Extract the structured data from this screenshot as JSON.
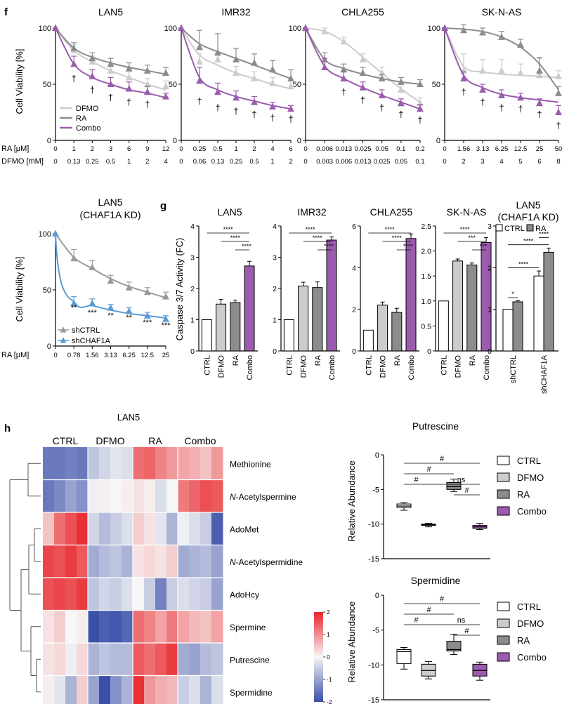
{
  "panels": {
    "f": "f",
    "g": "g",
    "h": "h"
  },
  "colors": {
    "dfmo": "#cccccc",
    "ra": "#8c8c8c",
    "combo": "#9b5bae",
    "shctrl": "#9a9a9a",
    "shchaf1a": "#5b9bd5",
    "heat_low": "#3a4fa8",
    "heat_mid": "#f7f7f7",
    "heat_high": "#e8262b"
  },
  "panel_f": {
    "ylabel": "Cell Viability [%]",
    "ra_row_label": "RA [μM]",
    "dfmo_row_label": "DFMO [mM]",
    "legend": [
      "DFMO",
      "RA",
      "Combo"
    ],
    "dagger": "†",
    "charts": [
      {
        "title": "LAN5",
        "ra_ticks": [
          "0",
          "1",
          "2",
          "3",
          "6",
          "9",
          "12"
        ],
        "dfmo_ticks": [
          "0",
          "0.13",
          "0.25",
          "0.5",
          "1",
          "2",
          "4"
        ],
        "ylim": [
          0,
          100
        ],
        "yticks": [
          "0",
          "50",
          "100"
        ],
        "series": [
          {
            "key": "dfmo",
            "values": [
              100,
              80,
              70,
              62,
              56,
              50,
              48
            ],
            "err": [
              0,
              5,
              5,
              5,
              5,
              5,
              5
            ],
            "fit": [
              100,
              80,
              70,
              62,
              56,
              50,
              45
            ]
          },
          {
            "key": "ra",
            "values": [
              100,
              82,
              73,
              68,
              64,
              62,
              60
            ],
            "err": [
              0,
              5,
              5,
              5,
              5,
              5,
              5
            ],
            "fit": [
              100,
              82,
              74,
              69,
              65,
              62,
              59
            ]
          },
          {
            "key": "combo",
            "values": [
              100,
              68,
              57,
              50,
              46,
              43,
              39
            ],
            "err": [
              0,
              7,
              6,
              6,
              6,
              5,
              3
            ],
            "fit": [
              100,
              68,
              56,
              50,
              45,
              42,
              38
            ]
          }
        ],
        "daggers": [
          1,
          2,
          3,
          4,
          5
        ]
      },
      {
        "title": "IMR32",
        "ra_ticks": [
          "0",
          "0.25",
          "0.5",
          "1",
          "2",
          "4",
          "6"
        ],
        "dfmo_ticks": [
          "0",
          "0.06",
          "0.13",
          "0.25",
          "0.5",
          "1",
          "2"
        ],
        "ylim": [
          0,
          100
        ],
        "yticks": [
          "0",
          "50",
          "100"
        ],
        "series": [
          {
            "key": "dfmo",
            "values": [
              100,
              70,
              72,
              60,
              55,
              51,
              48
            ],
            "err": [
              0,
              7,
              6,
              6,
              6,
              5,
              5
            ],
            "fit": [
              100,
              76,
              67,
              60,
              55,
              50,
              46
            ]
          },
          {
            "key": "ra",
            "values": [
              100,
              83,
              78,
              72,
              69,
              63,
              55
            ],
            "err": [
              0,
              15,
              17,
              10,
              8,
              8,
              8
            ],
            "fit": [
              100,
              86,
              79,
              73,
              67,
              61,
              55
            ]
          },
          {
            "key": "combo",
            "values": [
              100,
              53,
              43,
              38,
              34,
              30,
              28
            ],
            "err": [
              0,
              12,
              8,
              6,
              5,
              4,
              3
            ],
            "fit": [
              100,
              56,
              45,
              39,
              35,
              31,
              28
            ]
          }
        ],
        "daggers": [
          1,
          2,
          3,
          4,
          5,
          6
        ]
      },
      {
        "title": "CHLA255",
        "ra_ticks": [
          "0",
          "0.006",
          "0.013",
          "0.025",
          "0.05",
          "0.1",
          "0.2"
        ],
        "dfmo_ticks": [
          "0",
          "0.003",
          "0.006",
          "0.013",
          "0.025",
          "0.05",
          "0.1"
        ],
        "ylim": [
          0,
          100
        ],
        "yticks": [
          "0",
          "50",
          "100"
        ],
        "series": [
          {
            "key": "dfmo",
            "values": [
              100,
              97,
              88,
              72,
              60,
              45,
              33
            ],
            "err": [
              0,
              3,
              4,
              5,
              5,
              6,
              5
            ],
            "fit": [
              100,
              97,
              88,
              74,
              60,
              46,
              34
            ]
          },
          {
            "key": "ra",
            "values": [
              100,
              72,
              63,
              60,
              55,
              52,
              50
            ],
            "err": [
              0,
              6,
              5,
              5,
              4,
              4,
              4
            ],
            "fit": [
              100,
              72,
              64,
              59,
              55,
              52,
              50
            ]
          },
          {
            "key": "combo",
            "values": [
              100,
              65,
              55,
              47,
              40,
              33,
              28
            ],
            "err": [
              0,
              8,
              6,
              5,
              5,
              4,
              4
            ],
            "fit": [
              100,
              66,
              55,
              47,
              40,
              34,
              28
            ]
          }
        ],
        "daggers": [
          2,
          3,
          4,
          5,
          6
        ]
      },
      {
        "title": "SK-N-AS",
        "ra_ticks": [
          "0",
          "1.56",
          "3.13",
          "6.25",
          "12.5",
          "25",
          "50"
        ],
        "dfmo_ticks": [
          "0",
          "2",
          "3",
          "4",
          "5",
          "6",
          "8"
        ],
        "ylim": [
          0,
          100
        ],
        "yticks": [
          "0",
          "50",
          "100"
        ],
        "series": [
          {
            "key": "dfmo",
            "values": [
              100,
              62,
              62,
              62,
              60,
              58,
              57
            ],
            "err": [
              0,
              15,
              10,
              10,
              8,
              15,
              5
            ],
            "fit": [
              100,
              66,
              61,
              59,
              58,
              57,
              56
            ]
          },
          {
            "key": "ra",
            "values": [
              100,
              98,
              96,
              92,
              85,
              62,
              42
            ],
            "err": [
              0,
              5,
              4,
              5,
              5,
              12,
              6
            ],
            "fit": [
              100,
              99,
              97,
              92,
              83,
              68,
              45
            ]
          },
          {
            "key": "combo",
            "values": [
              100,
              55,
              45,
              40,
              38,
              33,
              25
            ],
            "err": [
              0,
              6,
              5,
              5,
              4,
              4,
              6
            ],
            "fit": [
              100,
              58,
              47,
              41,
              38,
              36,
              34
            ]
          }
        ],
        "daggers": [
          1,
          2,
          3,
          4,
          5,
          6
        ]
      }
    ]
  },
  "panel_f2": {
    "title_line1": "LAN5",
    "title_line2": "(CHAF1A KD)",
    "ylabel": "Cell Viability [%]",
    "xlabel": "RA [μM]",
    "ticks": [
      "0",
      "0.78",
      "1.56",
      "3.13",
      "6.25",
      "12.5",
      "25"
    ],
    "ylim": [
      0,
      100
    ],
    "yticks": [
      "0",
      "50",
      "100"
    ],
    "legend": [
      "shCTRL",
      "shCHAF1A"
    ],
    "series": [
      {
        "key": "shctrl",
        "values": [
          100,
          78,
          70,
          58,
          52,
          48,
          44
        ],
        "err": [
          0,
          8,
          6,
          5,
          5,
          4,
          4
        ],
        "fit": [
          100,
          79,
          69,
          60,
          53,
          48,
          43
        ]
      },
      {
        "key": "shchaf1a",
        "values": [
          100,
          38,
          38,
          34,
          31,
          27,
          24
        ],
        "err": [
          0,
          6,
          4,
          3,
          3,
          3,
          3
        ],
        "fit": [
          100,
          40,
          36,
          32,
          29,
          27,
          25
        ]
      }
    ],
    "stars": [
      "**",
      "***",
      "**",
      "**",
      "***",
      "***"
    ]
  },
  "panel_g": {
    "ylabel": "Caspase 3/7 Activity (FC)",
    "categories": [
      "CTRL",
      "DFMO",
      "RA",
      "Combo"
    ],
    "charts": [
      {
        "title": "LAN5",
        "ymax": 4,
        "yticks": [
          "0",
          "1",
          "2",
          "3",
          "4"
        ],
        "values": [
          1,
          1.5,
          1.55,
          2.72
        ],
        "err": [
          0,
          0.15,
          0.08,
          0.15
        ],
        "sig": [
          "****",
          "****",
          "****"
        ]
      },
      {
        "title": "IMR32",
        "ymax": 4,
        "yticks": [
          "0",
          "1",
          "2",
          "3",
          "4"
        ],
        "values": [
          1,
          2.08,
          2.03,
          3.55
        ],
        "err": [
          0,
          0.12,
          0.18,
          0.1
        ],
        "sig": [
          "****",
          "****",
          "****"
        ]
      },
      {
        "title": "CHLA255",
        "ymax": 6,
        "yticks": [
          "0",
          "2",
          "4",
          "6"
        ],
        "values": [
          1,
          2.2,
          1.85,
          5.4
        ],
        "err": [
          0,
          0.15,
          0.2,
          0.22
        ],
        "sig": [
          "****",
          "****",
          "****"
        ]
      },
      {
        "title": "SK-N-AS",
        "ymax": 2.5,
        "yticks": [
          "0",
          "0.5",
          "1.0",
          "1.5",
          "2.0",
          "2.5"
        ],
        "values": [
          1,
          1.8,
          1.72,
          2.17
        ],
        "err": [
          0,
          0.04,
          0.04,
          0.1
        ],
        "sig": [
          "****",
          "***",
          "***"
        ]
      }
    ],
    "kd": {
      "title_line1": "LAN5",
      "title_line2": "(CHAF1A KD)",
      "legend": [
        "CTRL",
        "RA"
      ],
      "groups": [
        "shCTRL",
        "shCHAF1A"
      ],
      "ymax": 3,
      "yticks": [
        "0",
        "1",
        "2",
        "3"
      ],
      "values": [
        [
          1,
          1.18
        ],
        [
          1.8,
          2.37
        ]
      ],
      "err": [
        [
          0,
          0.03
        ],
        [
          0.12,
          0.1
        ]
      ],
      "sig": [
        "*",
        "****",
        "****",
        "****"
      ]
    }
  },
  "panel_h": {
    "title": "LAN5",
    "groups": [
      "CTRL",
      "DFMO",
      "RA",
      "Combo"
    ],
    "rows": [
      "Methionine",
      "N-Acetylspermine",
      "AdoMet",
      "N-Acetylspermidine",
      "AdoHcy",
      "Spermine",
      "Putrescine",
      "Spermidine"
    ],
    "rows_italic_prefix": [
      null,
      "N",
      "",
      ""
    ],
    "colorbar_ticks": [
      "2",
      "1",
      "0",
      "-1",
      "-2"
    ],
    "heatmap": [
      [
        -1.5,
        -1.5,
        -1.4,
        -1.5,
        -0.6,
        -0.4,
        -0.2,
        -0.3,
        1.3,
        1.4,
        1.1,
        0.9,
        0.8,
        0.7,
        0.5,
        0.9
      ],
      [
        -1.5,
        -1.3,
        -1.0,
        -1.2,
        -0.1,
        0.1,
        0.0,
        0.1,
        0.2,
        0.1,
        -0.3,
        0.0,
        1.2,
        1.4,
        1.6,
        1.5
      ],
      [
        0.5,
        1.3,
        1.6,
        1.9,
        -0.4,
        -0.7,
        -0.5,
        -0.3,
        0.4,
        0.2,
        -0.2,
        -0.8,
        -0.1,
        -0.3,
        -0.5,
        -1.8
      ],
      [
        1.7,
        1.6,
        1.8,
        1.5,
        -0.9,
        -0.7,
        -0.6,
        -0.8,
        0.2,
        0.3,
        0.2,
        0.4,
        -0.9,
        -0.8,
        -0.7,
        -1.0
      ],
      [
        1.6,
        1.7,
        1.6,
        1.8,
        -0.6,
        -0.4,
        -0.5,
        -0.3,
        0.0,
        -0.5,
        -1.4,
        -0.5,
        -0.3,
        -0.4,
        -0.5,
        -1.0
      ],
      [
        0.2,
        0.4,
        0.0,
        0.1,
        -2.0,
        -1.8,
        -1.9,
        -1.7,
        1.3,
        1.1,
        0.8,
        1.2,
        0.8,
        0.6,
        0.5,
        0.8
      ],
      [
        0.2,
        0.3,
        -0.1,
        0.3,
        -0.8,
        -0.6,
        -0.7,
        -0.7,
        1.5,
        1.3,
        1.5,
        1.8,
        -0.9,
        -1.0,
        -0.7,
        -0.6
      ],
      [
        0.1,
        -0.2,
        -0.8,
        0.4,
        -1.0,
        -2.0,
        -1.2,
        -0.8,
        1.9,
        0.9,
        0.7,
        0.6,
        -0.5,
        -0.3,
        -0.8,
        -0.3
      ]
    ]
  },
  "panel_h_box": {
    "ylabel": "Relative Abundance",
    "legend": [
      "CTRL",
      "DFMO",
      "RA",
      "Combo"
    ],
    "sig_hash": "#",
    "sig_ns": "ns",
    "charts": [
      {
        "title": "Putrescine",
        "ylim": [
          -15,
          0
        ],
        "yticks": [
          "0",
          "-5",
          "-10",
          "-15"
        ],
        "boxes": [
          [
            -8.0,
            -7.6,
            -7.4,
            -7.1,
            -6.9
          ],
          [
            -10.4,
            -10.2,
            -10.1,
            -10.0,
            -9.9
          ],
          [
            -5.3,
            -5.0,
            -4.6,
            -4.0,
            -3.5
          ],
          [
            -10.8,
            -10.6,
            -10.4,
            -10.2,
            -9.9
          ]
        ]
      },
      {
        "title": "Spermidine",
        "ylim": [
          -15,
          0
        ],
        "yticks": [
          "0",
          "-5",
          "-10",
          "-15"
        ],
        "boxes": [
          [
            -10.6,
            -9.8,
            -8.1,
            -7.8,
            -7.5
          ],
          [
            -12.0,
            -11.6,
            -10.8,
            -9.9,
            -9.5
          ],
          [
            -8.5,
            -8.0,
            -7.8,
            -6.6,
            -5.6
          ],
          [
            -12.2,
            -11.6,
            -10.8,
            -9.9,
            -9.6
          ]
        ]
      }
    ]
  }
}
